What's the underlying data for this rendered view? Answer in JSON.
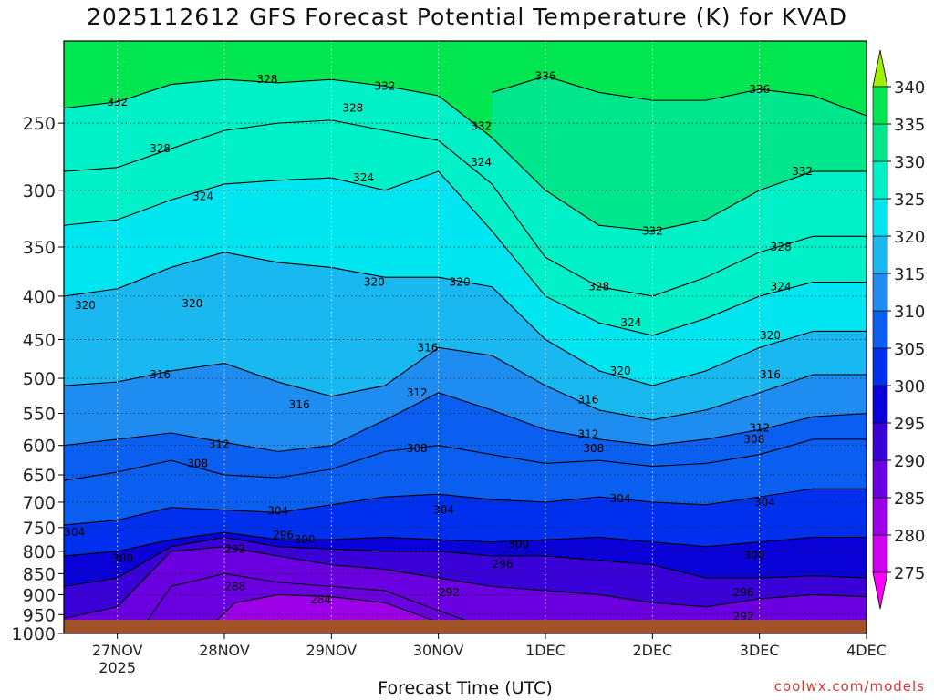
{
  "title": "2025112612 GFS Forecast Potential Temperature (K) for KVAD",
  "credit": "coolwx.com/models",
  "colors": {
    "ground": "#a0522d",
    "levels": [
      "#ff00ff",
      "#cf00ef",
      "#9d00e6",
      "#6a00e0",
      "#3a00d8",
      "#0a00d8",
      "#0030ee",
      "#0a5ef0",
      "#1f8cf2",
      "#19b8f0",
      "#00e6f0",
      "#00f0c8",
      "#00e68c",
      "#00e650",
      "#4aee28",
      "#a0ee00"
    ]
  },
  "chart_data": {
    "type": "heatmap",
    "title": "2025112612 GFS Forecast Potential Temperature (K) for KVAD",
    "xlabel": "Forecast Time (UTC)",
    "ylabel": "",
    "x_ticks": [
      {
        "day": 0.5,
        "label": "27NOV",
        "sub": "2025"
      },
      {
        "day": 1.5,
        "label": "28NOV",
        "sub": ""
      },
      {
        "day": 2.5,
        "label": "29NOV",
        "sub": ""
      },
      {
        "day": 3.5,
        "label": "30NOV",
        "sub": ""
      },
      {
        "day": 4.5,
        "label": "1DEC",
        "sub": ""
      },
      {
        "day": 5.5,
        "label": "2DEC",
        "sub": ""
      },
      {
        "day": 6.5,
        "label": "3DEC",
        "sub": ""
      },
      {
        "day": 7.5,
        "label": "4DEC",
        "sub": ""
      }
    ],
    "x_range_days": [
      0,
      7.5
    ],
    "y_ticks": [
      250,
      300,
      350,
      400,
      450,
      500,
      550,
      600,
      650,
      700,
      750,
      800,
      850,
      900,
      950,
      1000
    ],
    "y_range": [
      200,
      1000
    ],
    "y_scale": "log",
    "colorbar": {
      "levels": [
        275,
        280,
        285,
        290,
        295,
        300,
        305,
        310,
        315,
        320,
        325,
        330,
        335,
        340
      ],
      "range": [
        270,
        345
      ]
    },
    "contour_interval": 4,
    "series": [
      {
        "value": 336,
        "points": [
          [
            4.0,
            230
          ],
          [
            4.5,
            220
          ],
          [
            5.0,
            230
          ],
          [
            5.5,
            235
          ],
          [
            6.0,
            235
          ],
          [
            6.5,
            228
          ],
          [
            7.0,
            232
          ],
          [
            7.5,
            245
          ]
        ]
      },
      {
        "value": 332,
        "points": [
          [
            0,
            240
          ],
          [
            0.5,
            236
          ],
          [
            1.0,
            225
          ],
          [
            1.5,
            222
          ],
          [
            2.0,
            224
          ],
          [
            2.5,
            222
          ],
          [
            3.0,
            226
          ],
          [
            3.5,
            232
          ],
          [
            4.0,
            260
          ],
          [
            4.5,
            300
          ],
          [
            5.0,
            330
          ],
          [
            5.5,
            335
          ],
          [
            6.0,
            325
          ],
          [
            6.5,
            300
          ],
          [
            7.0,
            285
          ],
          [
            7.5,
            285
          ]
        ]
      },
      {
        "value": 328,
        "points": [
          [
            0,
            285
          ],
          [
            0.5,
            282
          ],
          [
            1.0,
            268
          ],
          [
            1.5,
            255
          ],
          [
            2.0,
            250
          ],
          [
            2.5,
            248
          ],
          [
            3.0,
            255
          ],
          [
            3.5,
            262
          ],
          [
            4.0,
            295
          ],
          [
            4.5,
            360
          ],
          [
            5.0,
            390
          ],
          [
            5.5,
            400
          ],
          [
            6.0,
            380
          ],
          [
            6.5,
            355
          ],
          [
            7.0,
            340
          ],
          [
            7.5,
            340
          ]
        ]
      },
      {
        "value": 324,
        "points": [
          [
            0,
            330
          ],
          [
            0.5,
            325
          ],
          [
            1.0,
            308
          ],
          [
            1.5,
            295
          ],
          [
            2.0,
            292
          ],
          [
            2.5,
            290
          ],
          [
            3.0,
            300
          ],
          [
            3.5,
            285
          ],
          [
            4.0,
            335
          ],
          [
            4.5,
            400
          ],
          [
            5.0,
            430
          ],
          [
            5.5,
            445
          ],
          [
            6.0,
            425
          ],
          [
            6.5,
            400
          ],
          [
            7.0,
            385
          ],
          [
            7.5,
            385
          ]
        ]
      },
      {
        "value": 320,
        "points": [
          [
            0,
            400
          ],
          [
            0.5,
            392
          ],
          [
            1.0,
            370
          ],
          [
            1.5,
            355
          ],
          [
            2.0,
            365
          ],
          [
            2.5,
            370
          ],
          [
            3.0,
            380
          ],
          [
            3.5,
            380
          ],
          [
            4.0,
            390
          ],
          [
            4.5,
            450
          ],
          [
            5.0,
            490
          ],
          [
            5.5,
            510
          ],
          [
            6.0,
            490
          ],
          [
            6.5,
            460
          ],
          [
            7.0,
            440
          ],
          [
            7.5,
            440
          ]
        ]
      },
      {
        "value": 316,
        "points": [
          [
            0,
            510
          ],
          [
            0.5,
            505
          ],
          [
            1.0,
            490
          ],
          [
            1.5,
            480
          ],
          [
            2.0,
            505
          ],
          [
            2.5,
            525
          ],
          [
            3.0,
            510
          ],
          [
            3.5,
            460
          ],
          [
            4.0,
            470
          ],
          [
            4.5,
            510
          ],
          [
            5.0,
            545
          ],
          [
            5.5,
            560
          ],
          [
            6.0,
            545
          ],
          [
            6.5,
            520
          ],
          [
            7.0,
            495
          ],
          [
            7.5,
            495
          ]
        ]
      },
      {
        "value": 312,
        "points": [
          [
            0,
            600
          ],
          [
            0.5,
            590
          ],
          [
            1.0,
            580
          ],
          [
            1.5,
            595
          ],
          [
            2.0,
            610
          ],
          [
            2.5,
            600
          ],
          [
            3.0,
            560
          ],
          [
            3.5,
            520
          ],
          [
            4.0,
            545
          ],
          [
            4.5,
            575
          ],
          [
            5.0,
            590
          ],
          [
            5.5,
            600
          ],
          [
            6.0,
            590
          ],
          [
            6.5,
            575
          ],
          [
            7.0,
            555
          ],
          [
            7.5,
            550
          ]
        ]
      },
      {
        "value": 308,
        "points": [
          [
            0,
            660
          ],
          [
            0.5,
            645
          ],
          [
            1.0,
            625
          ],
          [
            1.5,
            650
          ],
          [
            2.0,
            655
          ],
          [
            2.5,
            640
          ],
          [
            3.0,
            610
          ],
          [
            3.5,
            600
          ],
          [
            4.0,
            615
          ],
          [
            4.5,
            630
          ],
          [
            5.0,
            625
          ],
          [
            5.5,
            635
          ],
          [
            6.0,
            630
          ],
          [
            6.5,
            615
          ],
          [
            7.0,
            590
          ],
          [
            7.5,
            590
          ]
        ]
      },
      {
        "value": 304,
        "points": [
          [
            0,
            745
          ],
          [
            0.5,
            735
          ],
          [
            1.0,
            710
          ],
          [
            1.5,
            715
          ],
          [
            2.0,
            720
          ],
          [
            2.5,
            705
          ],
          [
            3.0,
            690
          ],
          [
            3.5,
            685
          ],
          [
            4.0,
            695
          ],
          [
            4.5,
            700
          ],
          [
            5.0,
            690
          ],
          [
            5.5,
            700
          ],
          [
            6.0,
            705
          ],
          [
            6.5,
            690
          ],
          [
            7.0,
            675
          ],
          [
            7.5,
            675
          ]
        ]
      },
      {
        "value": 300,
        "points": [
          [
            0,
            810
          ],
          [
            0.5,
            800
          ],
          [
            1.0,
            775
          ],
          [
            1.5,
            760
          ],
          [
            2.0,
            775
          ],
          [
            2.5,
            775
          ],
          [
            3.0,
            770
          ],
          [
            3.5,
            775
          ],
          [
            4.0,
            780
          ],
          [
            4.5,
            775
          ],
          [
            5.0,
            770
          ],
          [
            5.5,
            780
          ],
          [
            6.0,
            790
          ],
          [
            6.5,
            780
          ],
          [
            7.0,
            770
          ],
          [
            7.5,
            770
          ]
        ]
      },
      {
        "value": 296,
        "points": [
          [
            0,
            880
          ],
          [
            0.5,
            860
          ],
          [
            1.0,
            790
          ],
          [
            1.5,
            770
          ],
          [
            2.0,
            790
          ],
          [
            2.5,
            795
          ],
          [
            3.0,
            800
          ],
          [
            3.5,
            800
          ],
          [
            4.0,
            810
          ],
          [
            4.5,
            810
          ],
          [
            5.0,
            820
          ],
          [
            5.5,
            830
          ],
          [
            6.0,
            860
          ],
          [
            6.5,
            860
          ],
          [
            7.0,
            855
          ],
          [
            7.5,
            860
          ]
        ]
      },
      {
        "value": 292,
        "points": [
          [
            0,
            960
          ],
          [
            0.5,
            930
          ],
          [
            1.0,
            800
          ],
          [
            1.5,
            790
          ],
          [
            2.0,
            810
          ],
          [
            2.5,
            830
          ],
          [
            3.0,
            840
          ],
          [
            3.5,
            860
          ],
          [
            4.0,
            880
          ],
          [
            4.5,
            890
          ],
          [
            5.0,
            900
          ],
          [
            5.5,
            920
          ],
          [
            6.0,
            930
          ],
          [
            6.5,
            910
          ],
          [
            7.0,
            900
          ],
          [
            7.5,
            905
          ]
        ]
      },
      {
        "value": 288,
        "points": [
          [
            0.7,
            1000
          ],
          [
            1.0,
            880
          ],
          [
            1.5,
            850
          ],
          [
            2.0,
            870
          ],
          [
            2.5,
            880
          ],
          [
            3.0,
            890
          ],
          [
            3.5,
            940
          ],
          [
            4.0,
            990
          ],
          [
            4.4,
            1000
          ]
        ]
      },
      {
        "value": 284,
        "points": [
          [
            1.3,
            1000
          ],
          [
            1.6,
            920
          ],
          [
            2.0,
            900
          ],
          [
            2.5,
            905
          ],
          [
            3.0,
            920
          ],
          [
            3.4,
            960
          ],
          [
            3.8,
            1000
          ]
        ]
      }
    ],
    "labels": [
      {
        "text": "336",
        "day": 4.5,
        "p": 220
      },
      {
        "text": "336",
        "day": 6.5,
        "p": 228
      },
      {
        "text": "332",
        "day": 0.5,
        "p": 236
      },
      {
        "text": "332",
        "day": 3.0,
        "p": 226
      },
      {
        "text": "332",
        "day": 3.9,
        "p": 252
      },
      {
        "text": "332",
        "day": 5.5,
        "p": 335
      },
      {
        "text": "332",
        "day": 6.9,
        "p": 285
      },
      {
        "text": "328",
        "day": 1.9,
        "p": 222
      },
      {
        "text": "328",
        "day": 2.7,
        "p": 240
      },
      {
        "text": "328",
        "day": 0.9,
        "p": 268
      },
      {
        "text": "328",
        "day": 5.0,
        "p": 390
      },
      {
        "text": "328",
        "day": 6.7,
        "p": 350
      },
      {
        "text": "324",
        "day": 1.3,
        "p": 305
      },
      {
        "text": "324",
        "day": 2.8,
        "p": 290
      },
      {
        "text": "324",
        "day": 3.9,
        "p": 278
      },
      {
        "text": "324",
        "day": 5.3,
        "p": 430
      },
      {
        "text": "324",
        "day": 6.7,
        "p": 390
      },
      {
        "text": "320",
        "day": 0.2,
        "p": 410
      },
      {
        "text": "320",
        "day": 1.2,
        "p": 408
      },
      {
        "text": "320",
        "day": 2.9,
        "p": 385
      },
      {
        "text": "320",
        "day": 3.7,
        "p": 385
      },
      {
        "text": "320",
        "day": 5.2,
        "p": 490
      },
      {
        "text": "320",
        "day": 6.6,
        "p": 445
      },
      {
        "text": "316",
        "day": 0.9,
        "p": 495
      },
      {
        "text": "316",
        "day": 2.2,
        "p": 537
      },
      {
        "text": "316",
        "day": 3.4,
        "p": 460
      },
      {
        "text": "316",
        "day": 4.9,
        "p": 530
      },
      {
        "text": "316",
        "day": 6.6,
        "p": 495
      },
      {
        "text": "312",
        "day": 1.45,
        "p": 598
      },
      {
        "text": "312",
        "day": 3.3,
        "p": 520
      },
      {
        "text": "312",
        "day": 4.9,
        "p": 582
      },
      {
        "text": "312",
        "day": 6.5,
        "p": 572
      },
      {
        "text": "308",
        "day": 1.25,
        "p": 630
      },
      {
        "text": "308",
        "day": 3.3,
        "p": 605
      },
      {
        "text": "308",
        "day": 4.95,
        "p": 605
      },
      {
        "text": "308",
        "day": 6.45,
        "p": 590
      },
      {
        "text": "304",
        "day": 0.1,
        "p": 760
      },
      {
        "text": "304",
        "day": 2.0,
        "p": 717
      },
      {
        "text": "304",
        "day": 3.55,
        "p": 715
      },
      {
        "text": "304",
        "day": 5.2,
        "p": 693
      },
      {
        "text": "304",
        "day": 6.55,
        "p": 700
      },
      {
        "text": "300",
        "day": 0.55,
        "p": 815
      },
      {
        "text": "300",
        "day": 2.25,
        "p": 775
      },
      {
        "text": "300",
        "day": 4.25,
        "p": 785
      },
      {
        "text": "300",
        "day": 6.45,
        "p": 808
      },
      {
        "text": "296",
        "day": 2.05,
        "p": 765
      },
      {
        "text": "296",
        "day": 4.1,
        "p": 828
      },
      {
        "text": "296",
        "day": 6.35,
        "p": 895
      },
      {
        "text": "292",
        "day": 1.6,
        "p": 795
      },
      {
        "text": "292",
        "day": 3.6,
        "p": 895
      },
      {
        "text": "292",
        "day": 6.35,
        "p": 955
      },
      {
        "text": "288",
        "day": 1.6,
        "p": 880
      },
      {
        "text": "284",
        "day": 2.4,
        "p": 912
      }
    ]
  }
}
